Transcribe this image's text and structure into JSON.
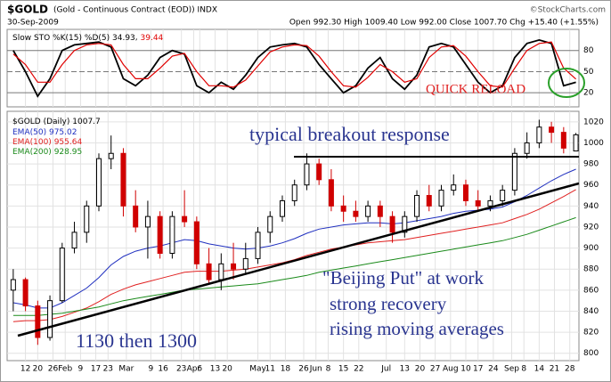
{
  "header": {
    "symbol": "$GOLD",
    "description": "(Gold - Continuous Contract (EOD)) INDX",
    "date": "30-Sep-2009",
    "quote": "Open 992.30 High 1009.40 Low 992.00 Close 1007.70 Chg +15.40 (+1.55%)",
    "credit": "©StockCharts.com"
  },
  "annotations": [
    "typical breakout response",
    "QUICK RELOAD",
    "\"Beijing Put\" at work",
    "strong recovery",
    "rising moving averages",
    "1130 then 1300"
  ],
  "chart_data": [
    {
      "type": "line",
      "title": "Slow STO %K(15) %D(5)",
      "x": [
        2,
        6,
        10,
        14,
        18,
        22,
        26,
        30,
        34,
        38,
        42,
        46,
        50,
        54,
        58,
        62,
        66,
        70,
        74,
        78,
        82,
        86,
        90,
        94,
        98,
        102,
        106,
        110,
        114,
        118,
        122,
        126,
        130,
        134,
        138,
        142,
        146,
        150,
        154,
        158,
        162,
        166,
        170,
        174,
        178,
        182,
        186
      ],
      "xlim": [
        0,
        187
      ],
      "ylim": [
        0,
        110
      ],
      "yticks": [
        20,
        50,
        80
      ],
      "series": [
        {
          "name": "%K",
          "color": "#000000",
          "values": [
            80,
            50,
            15,
            40,
            80,
            88,
            90,
            92,
            85,
            40,
            30,
            45,
            70,
            80,
            75,
            30,
            20,
            35,
            25,
            45,
            70,
            85,
            88,
            90,
            85,
            60,
            40,
            20,
            30,
            55,
            70,
            40,
            25,
            45,
            85,
            90,
            85,
            60,
            35,
            20,
            30,
            70,
            90,
            95,
            90,
            30,
            34.93
          ]
        },
        {
          "name": "%D",
          "color": "#e00000",
          "values": [
            75,
            60,
            35,
            35,
            60,
            80,
            88,
            90,
            88,
            60,
            40,
            40,
            55,
            72,
            76,
            50,
            30,
            30,
            28,
            38,
            58,
            78,
            85,
            88,
            87,
            72,
            50,
            30,
            28,
            42,
            60,
            50,
            35,
            40,
            70,
            85,
            87,
            72,
            50,
            30,
            28,
            55,
            80,
            90,
            92,
            55,
            39.44
          ]
        }
      ]
    },
    {
      "type": "candlestick",
      "title": "$GOLD (Daily)",
      "x": [
        2,
        6,
        10,
        14,
        18,
        22,
        26,
        30,
        34,
        38,
        42,
        46,
        50,
        54,
        58,
        62,
        66,
        70,
        74,
        78,
        82,
        86,
        90,
        94,
        98,
        102,
        106,
        110,
        114,
        118,
        122,
        126,
        130,
        134,
        138,
        142,
        146,
        150,
        154,
        158,
        162,
        166,
        170,
        174,
        178,
        182,
        186
      ],
      "xlim": [
        0,
        187
      ],
      "xticks": [
        {
          "value": 6,
          "label": "12"
        },
        {
          "value": 10,
          "label": "20"
        },
        {
          "value": 15,
          "label": "26"
        },
        {
          "value": 19,
          "label": "Feb"
        },
        {
          "value": 24,
          "label": "9"
        },
        {
          "value": 29,
          "label": "17"
        },
        {
          "value": 33,
          "label": "23"
        },
        {
          "value": 39,
          "label": "Mar"
        },
        {
          "value": 47,
          "label": "9"
        },
        {
          "value": 51,
          "label": "16"
        },
        {
          "value": 57,
          "label": "23"
        },
        {
          "value": 61,
          "label": "Apr"
        },
        {
          "value": 63,
          "label": "6"
        },
        {
          "value": 68,
          "label": "13"
        },
        {
          "value": 72,
          "label": "20"
        },
        {
          "value": 82,
          "label": "May"
        },
        {
          "value": 86,
          "label": "11"
        },
        {
          "value": 91,
          "label": "18"
        },
        {
          "value": 97,
          "label": "26"
        },
        {
          "value": 101,
          "label": "Jun"
        },
        {
          "value": 105,
          "label": "8"
        },
        {
          "value": 110,
          "label": "15"
        },
        {
          "value": 115,
          "label": "22"
        },
        {
          "value": 124,
          "label": "Jul"
        },
        {
          "value": 130,
          "label": "13"
        },
        {
          "value": 135,
          "label": "20"
        },
        {
          "value": 140,
          "label": "27"
        },
        {
          "value": 145,
          "label": "Aug"
        },
        {
          "value": 150,
          "label": "10"
        },
        {
          "value": 154,
          "label": "17"
        },
        {
          "value": 159,
          "label": "24"
        },
        {
          "value": 165,
          "label": "Sep"
        },
        {
          "value": 169,
          "label": "8"
        },
        {
          "value": 174,
          "label": "14"
        },
        {
          "value": 179,
          "label": "21"
        },
        {
          "value": 184,
          "label": "28"
        }
      ],
      "ylim": [
        793,
        1030
      ],
      "yticks": [
        800,
        820,
        840,
        860,
        880,
        900,
        920,
        940,
        960,
        980,
        1000,
        1020
      ],
      "grid": true,
      "open": [
        860,
        870,
        845,
        815,
        850,
        900,
        915,
        940,
        985,
        990,
        940,
        920,
        930,
        895,
        930,
        925,
        885,
        870,
        885,
        880,
        890,
        915,
        930,
        945,
        960,
        980,
        965,
        940,
        935,
        930,
        940,
        930,
        915,
        930,
        950,
        940,
        955,
        960,
        945,
        940,
        945,
        955,
        990,
        1000,
        1015,
        1010,
        992.3
      ],
      "high": [
        880,
        872,
        850,
        855,
        905,
        925,
        945,
        990,
        1007,
        995,
        955,
        945,
        935,
        935,
        955,
        930,
        900,
        895,
        905,
        905,
        920,
        935,
        950,
        965,
        990,
        985,
        975,
        950,
        945,
        945,
        945,
        935,
        935,
        955,
        960,
        960,
        970,
        965,
        955,
        950,
        960,
        995,
        1010,
        1022,
        1020,
        1015,
        1009.4
      ],
      "low": [
        840,
        840,
        808,
        812,
        848,
        895,
        905,
        935,
        975,
        930,
        915,
        890,
        890,
        890,
        920,
        880,
        865,
        860,
        870,
        875,
        885,
        905,
        925,
        940,
        955,
        960,
        935,
        925,
        925,
        925,
        920,
        905,
        910,
        925,
        935,
        935,
        950,
        940,
        935,
        935,
        940,
        950,
        985,
        995,
        1000,
        990,
        992.0
      ],
      "close": [
        870,
        845,
        815,
        850,
        900,
        915,
        940,
        985,
        990,
        940,
        920,
        930,
        895,
        930,
        925,
        885,
        870,
        885,
        880,
        890,
        915,
        930,
        945,
        960,
        980,
        965,
        940,
        935,
        930,
        940,
        930,
        915,
        930,
        950,
        940,
        955,
        960,
        945,
        940,
        945,
        955,
        990,
        1000,
        1015,
        1010,
        995,
        1007.7
      ],
      "series": [
        {
          "name": "EMA(50)",
          "color": "#1f2fbf",
          "values": [
            848,
            846,
            843,
            843,
            848,
            855,
            862,
            872,
            884,
            892,
            897,
            900,
            902,
            905,
            908,
            907,
            904,
            902,
            900,
            899,
            900,
            902,
            905,
            909,
            914,
            918,
            920,
            922,
            923,
            924,
            924,
            923,
            924,
            926,
            928,
            930,
            933,
            935,
            936,
            937,
            939,
            944,
            950,
            957,
            964,
            970,
            975.02
          ]
        },
        {
          "name": "EMA(100)",
          "color": "#e02020",
          "values": [
            830,
            831,
            831,
            832,
            835,
            839,
            843,
            849,
            856,
            861,
            865,
            868,
            871,
            874,
            877,
            878,
            878,
            878,
            879,
            880,
            882,
            884,
            886,
            889,
            893,
            896,
            899,
            901,
            903,
            905,
            906,
            907,
            908,
            910,
            912,
            914,
            916,
            918,
            920,
            922,
            924,
            928,
            932,
            937,
            943,
            949,
            955.64
          ]
        },
        {
          "name": "EMA(200)",
          "color": "#1a8a1a",
          "values": [
            836,
            836,
            836,
            837,
            838,
            840,
            842,
            844,
            847,
            850,
            852,
            854,
            856,
            858,
            860,
            861,
            862,
            863,
            864,
            865,
            866,
            868,
            870,
            872,
            874,
            877,
            879,
            881,
            883,
            885,
            887,
            889,
            891,
            893,
            895,
            897,
            899,
            901,
            903,
            905,
            907,
            910,
            913,
            917,
            921,
            925,
            928.95
          ]
        }
      ]
    }
  ]
}
